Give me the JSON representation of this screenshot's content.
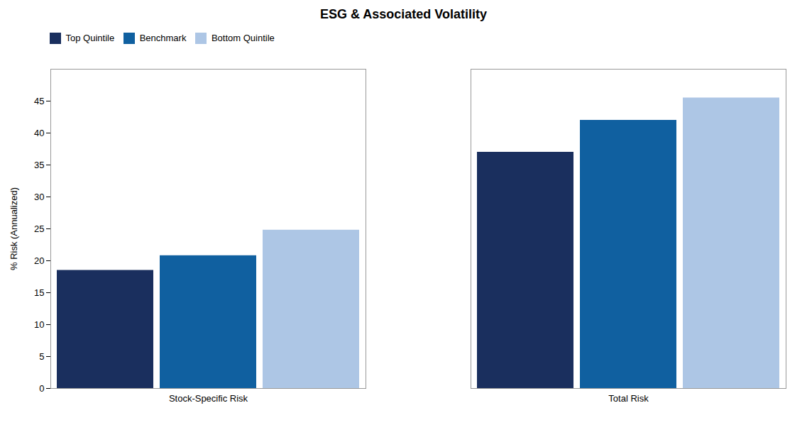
{
  "chart_data": {
    "type": "bar",
    "title": "ESG & Associated Volatility",
    "ylabel": "% Risk (Annualized)",
    "categories": [
      "Stock-Specific Risk",
      "Total Risk"
    ],
    "series": [
      {
        "name": "Top Quintile",
        "values": [
          18.5,
          37.0
        ],
        "color": "#1a2f5e"
      },
      {
        "name": "Benchmark",
        "values": [
          20.8,
          42.0
        ],
        "color": "#1060a0"
      },
      {
        "name": "Bottom Quintile",
        "values": [
          24.8,
          45.5
        ],
        "color": "#adc6e5"
      }
    ],
    "ylim": [
      0,
      50
    ],
    "yticks": [
      0,
      5,
      10,
      15,
      20,
      25,
      30,
      35,
      40,
      45
    ],
    "grid": false,
    "legend": "upper left"
  }
}
